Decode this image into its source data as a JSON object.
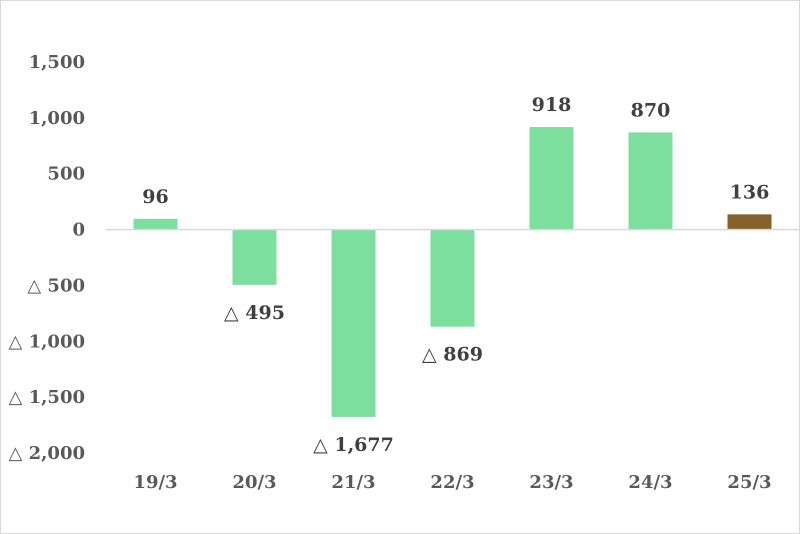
{
  "chart_data": {
    "type": "bar",
    "categories": [
      "19/3",
      "20/3",
      "21/3",
      "22/3",
      "23/3",
      "24/3",
      "25/3"
    ],
    "values": [
      96,
      -495,
      -1677,
      -869,
      918,
      870,
      136
    ],
    "value_labels": [
      "96",
      "△ 495",
      "△ 1,677",
      "△ 869",
      "918",
      "870",
      "136"
    ],
    "ylim": [
      -2000,
      1500
    ],
    "yticks": [
      1500,
      1000,
      500,
      0,
      -500,
      -1000,
      -1500,
      -2000
    ],
    "ytick_labels": [
      "1,500",
      "1,000",
      "500",
      "0",
      "△ 500",
      "△ 1,000",
      "△ 1,500",
      "△ 2,000"
    ],
    "bar_colors": [
      "#7ddf9e",
      "#7ddf9e",
      "#7ddf9e",
      "#7ddf9e",
      "#7ddf9e",
      "#7ddf9e",
      "#86612a"
    ],
    "grid": false,
    "legend": "none",
    "title": "",
    "xlabel": "",
    "ylabel": ""
  }
}
